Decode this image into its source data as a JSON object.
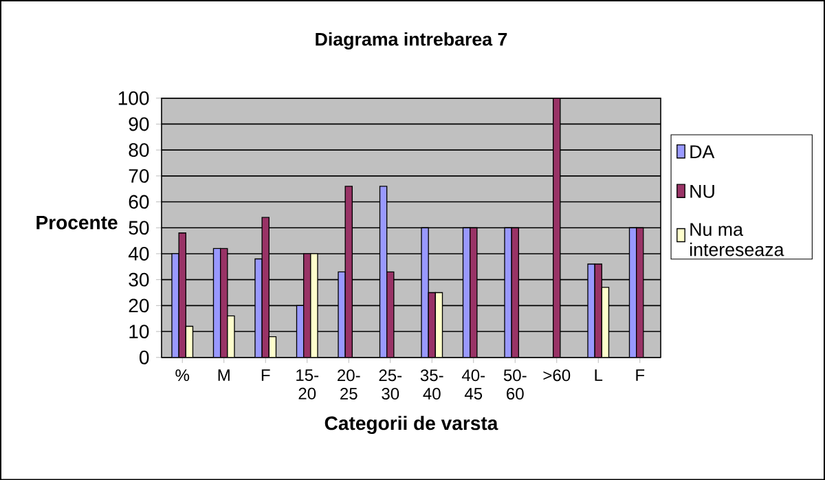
{
  "chart_data": {
    "type": "bar",
    "title": "Diagrama intrebarea 7",
    "xlabel": "Categorii de varsta",
    "ylabel": "Procente",
    "categories": [
      "%",
      "M",
      "F",
      "15-20",
      "20-25",
      "25-30",
      "35-40",
      "40-45",
      "50-60",
      ">60",
      "L",
      "F"
    ],
    "series": [
      {
        "name": "DA",
        "color": "#9999ff",
        "values": [
          40,
          42,
          38,
          20,
          33,
          66,
          50,
          50,
          50,
          0,
          36,
          50
        ]
      },
      {
        "name": "NU",
        "color": "#993366",
        "values": [
          48,
          42,
          54,
          40,
          66,
          33,
          25,
          50,
          50,
          100,
          36,
          50
        ]
      },
      {
        "name": "Nu ma intereseaza",
        "color": "#ffffcc",
        "values": [
          12,
          16,
          8,
          40,
          0,
          0,
          25,
          0,
          0,
          0,
          27,
          0
        ]
      }
    ],
    "ylim": [
      0,
      100
    ],
    "yticks": [
      0,
      10,
      20,
      30,
      40,
      50,
      60,
      70,
      80,
      90,
      100
    ],
    "grid": "y",
    "legend": "right"
  }
}
